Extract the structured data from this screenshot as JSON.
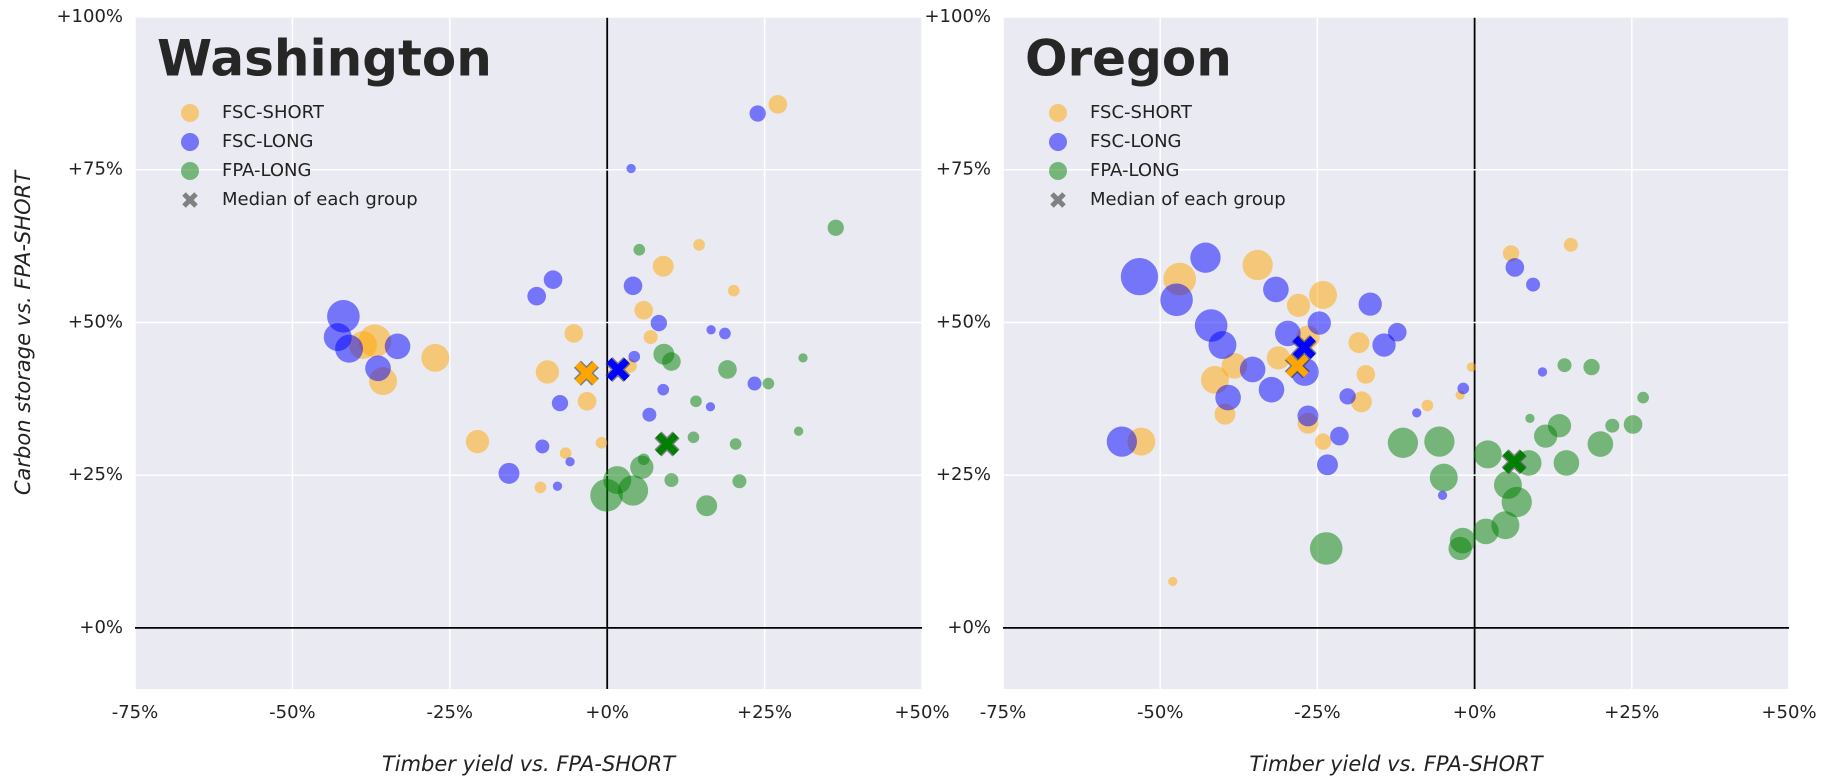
{
  "chart_data": [
    {
      "type": "scatter",
      "title": "Washington",
      "x_label": "Timber yield vs. FPA-SHORT",
      "y_label": "Carbon storage vs. FPA-SHORT",
      "xlim": [
        -75,
        50
      ],
      "ylim": [
        -10,
        100
      ],
      "xticks": [
        {
          "value": -75,
          "label": "-75%"
        },
        {
          "value": -50,
          "label": "-50%"
        },
        {
          "value": -25,
          "label": "-25%"
        },
        {
          "value": 0,
          "label": "+0%"
        },
        {
          "value": 25,
          "label": "+25%"
        },
        {
          "value": 50,
          "label": "+50%"
        }
      ],
      "yticks": [
        {
          "value": 0,
          "label": "+0%"
        },
        {
          "value": 25,
          "label": "+25%"
        },
        {
          "value": 50,
          "label": "+50%"
        },
        {
          "value": 75,
          "label": "+75%"
        },
        {
          "value": 100,
          "label": "+100%"
        }
      ],
      "grid": true,
      "alpha": 0.5,
      "median_legend": "Median of each group",
      "median_legend_color": "#808080",
      "series": [
        {
          "name": "FSC-SHORT",
          "color": "#ffa500",
          "x": [
            -36.9,
            -38.8,
            -35.6,
            -27.3,
            -20.6,
            -9.5,
            -5.3,
            -3.2,
            8.9,
            5.8,
            14.6,
            20.1,
            27.1,
            -10.6,
            -0.9,
            3.6,
            -6.6,
            6.9
          ],
          "values": [
            47,
            46.3,
            40.4,
            44.2,
            30.5,
            41.9,
            48.2,
            37.1,
            59.2,
            52,
            62.7,
            55.2,
            85.7,
            23,
            30.3,
            42.9,
            28.6,
            47.6
          ],
          "sizes": [
            14,
            12,
            12,
            12,
            10,
            10,
            8,
            8,
            9,
            8,
            5,
            5,
            8,
            5,
            5,
            6,
            5,
            6
          ],
          "median_x": -3.3,
          "median_y": 41.7
        },
        {
          "name": "FSC-LONG",
          "color": "#0000ff",
          "x": [
            -41.9,
            -42.8,
            -41,
            -33.3,
            -36.4,
            -15.6,
            -11.2,
            -8.6,
            -7.5,
            -10.3,
            4.1,
            3.8,
            23.9,
            8.2,
            18.7,
            23.4,
            6.7,
            8.9,
            4.3,
            -5.9,
            -7.9,
            16.4,
            16.5
          ],
          "values": [
            51,
            47.6,
            45.7,
            46.1,
            42.5,
            25.3,
            54.3,
            57,
            36.8,
            29.7,
            56,
            75.2,
            84.2,
            49.9,
            48.2,
            40,
            34.9,
            39,
            44.4,
            27.2,
            23.2,
            36.2,
            48.8
          ],
          "sizes": [
            14,
            12,
            12,
            11,
            11,
            9,
            8,
            8,
            7,
            6,
            8,
            4,
            7,
            7,
            5,
            6,
            6,
            5,
            5,
            4,
            4,
            4,
            4
          ],
          "median_x": 1.7,
          "median_y": 42.3
        },
        {
          "name": "FPA-LONG",
          "color": "#008000",
          "x": [
            -0.1,
            1.6,
            4.1,
            5.5,
            9,
            10.2,
            19.1,
            36.3,
            15.8,
            5.1,
            25.6,
            31.1,
            30.4,
            21,
            20.4,
            14.1,
            13.7,
            10.2,
            5.8
          ],
          "values": [
            21.7,
            24.2,
            22.5,
            26.3,
            44.8,
            43.6,
            42.3,
            65.5,
            20,
            61.9,
            40,
            44.2,
            32.2,
            24,
            30.1,
            37.1,
            31.2,
            24.2,
            27.6
          ],
          "sizes": [
            14,
            12,
            13,
            10,
            9,
            8,
            8,
            7,
            9,
            5,
            5,
            4,
            4,
            6,
            5,
            5,
            5,
            6,
            5
          ],
          "median_x": 9.5,
          "median_y": 30.1
        }
      ]
    },
    {
      "type": "scatter",
      "title": "Oregon",
      "x_label": "Timber yield vs. FPA-SHORT",
      "xlim": [
        -75,
        50
      ],
      "ylim": [
        -10,
        100
      ],
      "xticks": [
        {
          "value": -75,
          "label": "-75%"
        },
        {
          "value": -50,
          "label": "-50%"
        },
        {
          "value": -25,
          "label": "-25%"
        },
        {
          "value": 0,
          "label": "+0%"
        },
        {
          "value": 25,
          "label": "+25%"
        },
        {
          "value": 50,
          "label": "+50%"
        }
      ],
      "yticks": [
        {
          "value": 0,
          "label": "+0%"
        },
        {
          "value": 25,
          "label": "+25%"
        },
        {
          "value": 50,
          "label": "+50%"
        },
        {
          "value": 75,
          "label": "+75%"
        },
        {
          "value": 100,
          "label": "+100%"
        }
      ],
      "grid": true,
      "alpha": 0.5,
      "median_legend": "Median of each group",
      "median_legend_color": "#808080",
      "series": [
        {
          "name": "FSC-SHORT",
          "color": "#ffa500",
          "x": [
            -46.9,
            -34.5,
            -24.1,
            -28,
            -26.5,
            -41.3,
            -38.2,
            -39.7,
            -31.2,
            -18.4,
            -17.3,
            -18,
            -24.1,
            -53,
            -48,
            -7.5,
            5.8,
            15.3,
            -0.5,
            -26.5,
            -2.3
          ],
          "values": [
            57.1,
            59.4,
            54.5,
            52.8,
            47.6,
            40.6,
            42.9,
            35,
            44.2,
            46.7,
            41.5,
            37,
            30.5,
            30.5,
            7.6,
            36.4,
            61.3,
            62.7,
            42.7,
            33.5,
            38.1
          ],
          "sizes": [
            14,
            13,
            12,
            10,
            10,
            12,
            11,
            9,
            10,
            9,
            8,
            9,
            7,
            12,
            4,
            5,
            7,
            6,
            4,
            9,
            4
          ],
          "median_x": -28.2,
          "median_y": 42.9
        },
        {
          "name": "FSC-LONG",
          "color": "#0000ff",
          "x": [
            -53.3,
            -47.4,
            -42.8,
            -41.9,
            -40.1,
            -39.2,
            -35.3,
            -31.6,
            -29.7,
            -24.7,
            -16.6,
            -14.4,
            -12.3,
            -27,
            -32.3,
            -23.4,
            -21.5,
            -20.2,
            -56.1,
            6.4,
            9.3,
            -1.8,
            10.8,
            -5.1,
            -9.2,
            -26.5
          ],
          "values": [
            57.5,
            53.7,
            60.6,
            49.5,
            46.3,
            37.7,
            42.3,
            55.4,
            48.2,
            49.9,
            53,
            46.3,
            48.4,
            41.9,
            39,
            26.7,
            31.4,
            37.9,
            30.5,
            59,
            56.2,
            39.2,
            41.9,
            21.7,
            35.2,
            34.7
          ],
          "sizes": [
            16,
            14,
            13,
            14,
            12,
            11,
            11,
            11,
            11,
            10,
            10,
            10,
            8,
            12,
            11,
            9,
            8,
            7,
            13,
            8,
            6,
            5,
            4,
            4,
            4,
            9
          ],
          "median_x": -27.1,
          "median_y": 45.9
        },
        {
          "name": "FPA-LONG",
          "color": "#008000",
          "x": [
            -23.6,
            -11.4,
            -5.6,
            -4.9,
            -1.9,
            1.8,
            4.9,
            -2.3,
            6.7,
            2.1,
            5.3,
            11.3,
            13.5,
            14.6,
            20,
            25.2,
            18.6,
            26.8,
            21.9,
            8.6,
            14.3,
            8.8
          ],
          "values": [
            13,
            30.3,
            30.5,
            24.6,
            14.3,
            15.8,
            16.8,
            13,
            20.6,
            28.4,
            23.4,
            31.4,
            33.1,
            27,
            30.1,
            33.3,
            42.7,
            37.7,
            33.1,
            27,
            43,
            34.3
          ],
          "sizes": [
            14,
            13,
            13,
            12,
            11,
            11,
            12,
            10,
            13,
            12,
            12,
            10,
            10,
            11,
            11,
            8,
            7,
            5,
            6,
            11,
            6,
            4
          ],
          "median_x": 6.3,
          "median_y": 27.2
        }
      ]
    }
  ]
}
